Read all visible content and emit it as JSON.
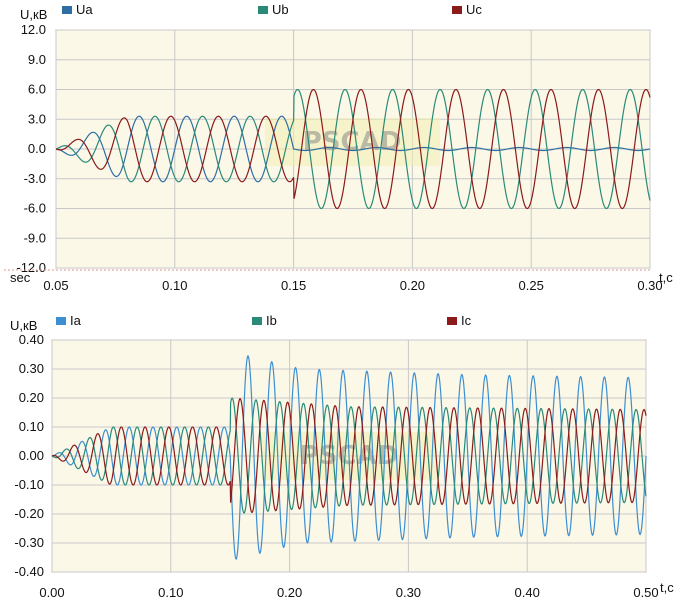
{
  "chart_data": [
    {
      "type": "line",
      "ylabel": "U,кВ",
      "xlabel": "t,c",
      "xprefix": "sec",
      "xlim": [
        0.05,
        0.3
      ],
      "ylim": [
        -12.0,
        12.0
      ],
      "x_ticks": [
        "0.05",
        "0.10",
        "0.15",
        "0.20",
        "0.25",
        "0.30"
      ],
      "y_ticks": [
        "12.0",
        "9.0",
        "6.0",
        "3.0",
        "0.0",
        "-3.0",
        "-6.0",
        "-9.0",
        "-12.0"
      ],
      "grid": true,
      "legend_position": "top",
      "watermark": "PSCAD",
      "series": [
        {
          "name": "Ua",
          "color": "#2f6ea3",
          "frequency_hz": 50,
          "phase_deg": 0,
          "envelope": [
            [
              0.05,
              0.0
            ],
            [
              0.08,
              3.3
            ],
            [
              0.15,
              3.3
            ],
            [
              0.1501,
              0.15
            ],
            [
              0.3,
              0.15
            ]
          ]
        },
        {
          "name": "Ub",
          "color": "#2a8a78",
          "frequency_hz": 50,
          "phase_deg": -120,
          "envelope": [
            [
              0.05,
              0.0
            ],
            [
              0.08,
              3.3
            ],
            [
              0.15,
              3.3
            ],
            [
              0.1501,
              6.0
            ],
            [
              0.3,
              6.0
            ]
          ]
        },
        {
          "name": "Uc",
          "color": "#8b1a1a",
          "frequency_hz": 50,
          "phase_deg": 120,
          "envelope": [
            [
              0.05,
              0.0
            ],
            [
              0.08,
              3.3
            ],
            [
              0.15,
              3.3
            ],
            [
              0.1501,
              6.0
            ],
            [
              0.3,
              6.0
            ]
          ]
        }
      ]
    },
    {
      "type": "line",
      "ylabel": "U,кВ",
      "xlabel": "t,c",
      "xlim": [
        0.0,
        0.5
      ],
      "ylim": [
        -0.4,
        0.4
      ],
      "x_ticks": [
        "0.00",
        "0.10",
        "0.20",
        "0.30",
        "0.40",
        "0.50"
      ],
      "y_ticks": [
        "0.40",
        "0.30",
        "0.20",
        "0.10",
        "0.00",
        "-0.10",
        "-0.20",
        "-0.30",
        "-0.40"
      ],
      "grid": true,
      "legend_position": "top",
      "watermark": "PSCAD",
      "series": [
        {
          "name": "Ia",
          "color": "#3d8fd1",
          "frequency_hz": 50,
          "phase_deg": 0,
          "envelope": [
            [
              0.0,
              0.0
            ],
            [
              0.05,
              0.1
            ],
            [
              0.15,
              0.1
            ],
            [
              0.1501,
              0.36
            ],
            [
              0.21,
              0.3
            ],
            [
              0.35,
              0.28
            ],
            [
              0.5,
              0.27
            ]
          ]
        },
        {
          "name": "Ib",
          "color": "#2a8a78",
          "frequency_hz": 50,
          "phase_deg": -120,
          "envelope": [
            [
              0.0,
              0.0
            ],
            [
              0.05,
              0.1
            ],
            [
              0.15,
              0.1
            ],
            [
              0.1501,
              0.2
            ],
            [
              0.25,
              0.17
            ],
            [
              0.5,
              0.16
            ]
          ]
        },
        {
          "name": "Ic",
          "color": "#8b1a1a",
          "frequency_hz": 50,
          "phase_deg": 120,
          "envelope": [
            [
              0.0,
              0.0
            ],
            [
              0.05,
              0.1
            ],
            [
              0.15,
              0.1
            ],
            [
              0.1501,
              0.2
            ],
            [
              0.25,
              0.17
            ],
            [
              0.5,
              0.16
            ]
          ]
        }
      ]
    }
  ],
  "colors": {
    "plot_bg": "#fbf8e8",
    "grid": "#c8c8c8",
    "frame": "#888888",
    "separator": "#d99a8a"
  }
}
